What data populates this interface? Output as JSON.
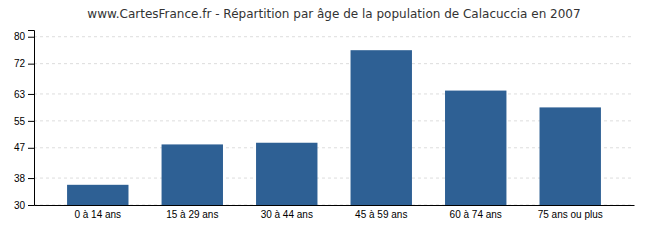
{
  "chart_data": {
    "type": "bar",
    "title": "www.CartesFrance.fr - Répartition par âge de la population de Calacuccia en 2007",
    "categories": [
      "0 à 14 ans",
      "15 à 29 ans",
      "30 à 44 ans",
      "45 à 59 ans",
      "60 à 74 ans",
      "75 ans ou plus"
    ],
    "values": [
      36,
      48,
      48.5,
      76,
      64,
      59
    ],
    "color": "#2e6094",
    "ylim": [
      30,
      82
    ],
    "yticks": [
      30,
      38,
      47,
      55,
      63,
      72,
      80
    ],
    "grid": true
  }
}
